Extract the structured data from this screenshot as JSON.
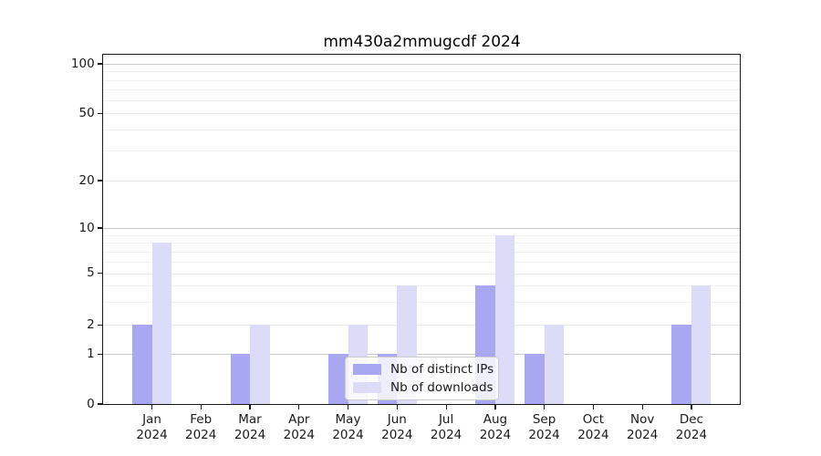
{
  "title": "mm430a2mmugcdf 2024",
  "chart_data": {
    "type": "bar",
    "title": "mm430a2mmugcdf 2024",
    "categories": [
      "Jan 2024",
      "Feb 2024",
      "Mar 2024",
      "Apr 2024",
      "May 2024",
      "Jun 2024",
      "Jul 2024",
      "Aug 2024",
      "Sep 2024",
      "Oct 2024",
      "Nov 2024",
      "Dec 2024"
    ],
    "series": [
      {
        "name": "Nb of distinct IPs",
        "color": "#a8a8f2",
        "values": [
          2,
          0,
          1,
          0,
          1,
          1,
          0,
          4,
          1,
          0,
          0,
          2
        ]
      },
      {
        "name": "Nb of downloads",
        "color": "#dcdcf8",
        "values": [
          8,
          0,
          2,
          0,
          2,
          4,
          0,
          9,
          2,
          0,
          0,
          4
        ]
      }
    ],
    "xlabel": "",
    "ylabel": "",
    "yscale": "log (linear segment between 0 and 1)",
    "y_major_ticks": [
      0,
      1,
      2,
      5,
      10,
      20,
      50,
      100
    ],
    "y_minor_ticks": [
      3,
      4,
      6,
      7,
      8,
      9,
      30,
      40,
      60,
      70,
      80,
      90
    ],
    "ylim": [
      0,
      130
    ],
    "grid": "horizontal major + minor, no vertical",
    "legend_position": "lower center inside plot"
  }
}
